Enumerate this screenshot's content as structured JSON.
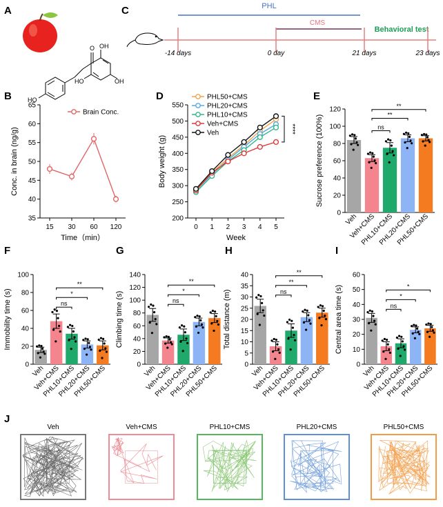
{
  "figure": {
    "panel_letters": [
      "A",
      "B",
      "C",
      "D",
      "E",
      "F",
      "G",
      "H",
      "I",
      "J"
    ]
  },
  "timeline": {
    "phl_label": "PHL",
    "cms_label": "CMS",
    "behavior_label": "Behavioral test",
    "days": [
      "-14 days",
      "0 day",
      "21 days",
      "23 days"
    ],
    "colors": {
      "phl": "#4472c4",
      "cms": "#7b2f5b",
      "behavior": "#1e9e5a",
      "axis": "#e87d7d"
    }
  },
  "groups": [
    "Veh",
    "Veh+CMS",
    "PHL10+CMS",
    "PHL20+CMS",
    "PHL50+CMS"
  ],
  "group_colors": [
    "#a6a6a6",
    "#f4858e",
    "#1faa6c",
    "#8db4f4",
    "#f47b20"
  ],
  "chart_data": [
    {
      "id": "B",
      "type": "line",
      "categories": [
        "15",
        "30",
        "60",
        "120"
      ],
      "series": [
        {
          "name": "Brain Conc.",
          "values": [
            48,
            46,
            56,
            40
          ],
          "errors": [
            1.3,
            1.0,
            1.5,
            0.9
          ],
          "color": "#e06666"
        }
      ],
      "xlabel": "Time（min）",
      "ylabel": "Conc. in brain (ng/g)",
      "ylim": [
        35,
        65
      ],
      "yticks": [
        35,
        40,
        45,
        50,
        55,
        60,
        65
      ],
      "legend": "top-right"
    },
    {
      "id": "D",
      "type": "line",
      "categories": [
        "0",
        "1",
        "2",
        "3",
        "4",
        "5"
      ],
      "series": [
        {
          "name": "PHL50+CMS",
          "values": [
            290,
            340,
            385,
            425,
            470,
            505
          ],
          "color": "#f2a34a"
        },
        {
          "name": "PHL20+CMS",
          "values": [
            285,
            335,
            380,
            420,
            460,
            490
          ],
          "color": "#5aa8e0"
        },
        {
          "name": "PHL10+CMS",
          "values": [
            280,
            330,
            375,
            410,
            450,
            480
          ],
          "color": "#2eb88a"
        },
        {
          "name": "Veh+CMS",
          "values": [
            285,
            340,
            375,
            400,
            420,
            435
          ],
          "color": "#e03a3a"
        },
        {
          "name": "Veh",
          "values": [
            290,
            345,
            395,
            435,
            480,
            515
          ],
          "color": "#111111"
        }
      ],
      "xlabel": "Week",
      "ylabel": "Body weight (g)",
      "ylim": [
        200,
        550
      ],
      "yticks": [
        200,
        250,
        300,
        350,
        400,
        450,
        500,
        550
      ],
      "annotation": "****",
      "legend": "top-left"
    },
    {
      "id": "E",
      "type": "bar",
      "values": [
        84,
        63,
        75,
        86,
        86
      ],
      "errors": [
        4,
        4,
        6,
        4,
        3
      ],
      "ylabel": "Sucrose preference (100%)",
      "ylim": [
        0,
        120
      ],
      "yticks": [
        0,
        20,
        40,
        60,
        80,
        100,
        120
      ],
      "sig": [
        {
          "from": 1,
          "to": 2,
          "label": "ns"
        },
        {
          "from": 1,
          "to": 3,
          "label": "**"
        },
        {
          "from": 1,
          "to": 4,
          "label": "**"
        }
      ]
    },
    {
      "id": "F",
      "type": "bar",
      "values": [
        16,
        48,
        34,
        22,
        21
      ],
      "errors": [
        3,
        8,
        6,
        4,
        5
      ],
      "ylabel": "Immobility time (s)",
      "ylim": [
        0,
        100
      ],
      "yticks": [
        0,
        20,
        40,
        60,
        80,
        100
      ],
      "sig": [
        {
          "from": 1,
          "to": 2,
          "label": "ns"
        },
        {
          "from": 1,
          "to": 3,
          "label": "*"
        },
        {
          "from": 1,
          "to": 4,
          "label": "**"
        }
      ]
    },
    {
      "id": "G",
      "type": "bar",
      "values": [
        77,
        37,
        46,
        66,
        72
      ],
      "errors": [
        10,
        4,
        9,
        6,
        7
      ],
      "ylabel": "Climbing time (s)",
      "ylim": [
        0,
        140
      ],
      "yticks": [
        0,
        20,
        40,
        60,
        80,
        100,
        120,
        140
      ],
      "sig": [
        {
          "from": 1,
          "to": 2,
          "label": "ns"
        },
        {
          "from": 1,
          "to": 3,
          "label": "*"
        },
        {
          "from": 1,
          "to": 4,
          "label": "**"
        }
      ]
    },
    {
      "id": "H",
      "type": "bar",
      "values": [
        26,
        8,
        15,
        21,
        23
      ],
      "errors": [
        3,
        2,
        3,
        2,
        2
      ],
      "ylabel": "Total distance (m)",
      "ylim": [
        0,
        40
      ],
      "yticks": [
        0,
        5,
        10,
        15,
        20,
        25,
        30,
        35,
        40
      ],
      "sig": [
        {
          "from": 1,
          "to": 2,
          "label": "ns"
        },
        {
          "from": 1,
          "to": 3,
          "label": "**"
        },
        {
          "from": 1,
          "to": 4,
          "label": "**"
        }
      ]
    },
    {
      "id": "I",
      "type": "bar",
      "values": [
        31,
        12,
        14,
        23,
        24
      ],
      "errors": [
        3,
        3,
        3,
        2,
        2
      ],
      "ylabel": "Central area time (s)",
      "ylim": [
        0,
        60
      ],
      "yticks": [
        0,
        10,
        20,
        30,
        40,
        50,
        60
      ],
      "sig": [
        {
          "from": 1,
          "to": 2,
          "label": "ns"
        },
        {
          "from": 1,
          "to": 3,
          "label": "*"
        },
        {
          "from": 1,
          "to": 4,
          "label": "*"
        }
      ]
    }
  ],
  "track_labels": [
    "Veh",
    "Veh+CMS",
    "PHL10+CMS",
    "PHL20+CMS",
    "PHL50+CMS"
  ],
  "track_colors": [
    "#555555",
    "#e8727b",
    "#7dbf62",
    "#5b8fd6",
    "#f2953a"
  ],
  "track_border_colors": [
    "#777777",
    "#f08a94",
    "#54b85a",
    "#5b8fd6",
    "#f29b45"
  ]
}
